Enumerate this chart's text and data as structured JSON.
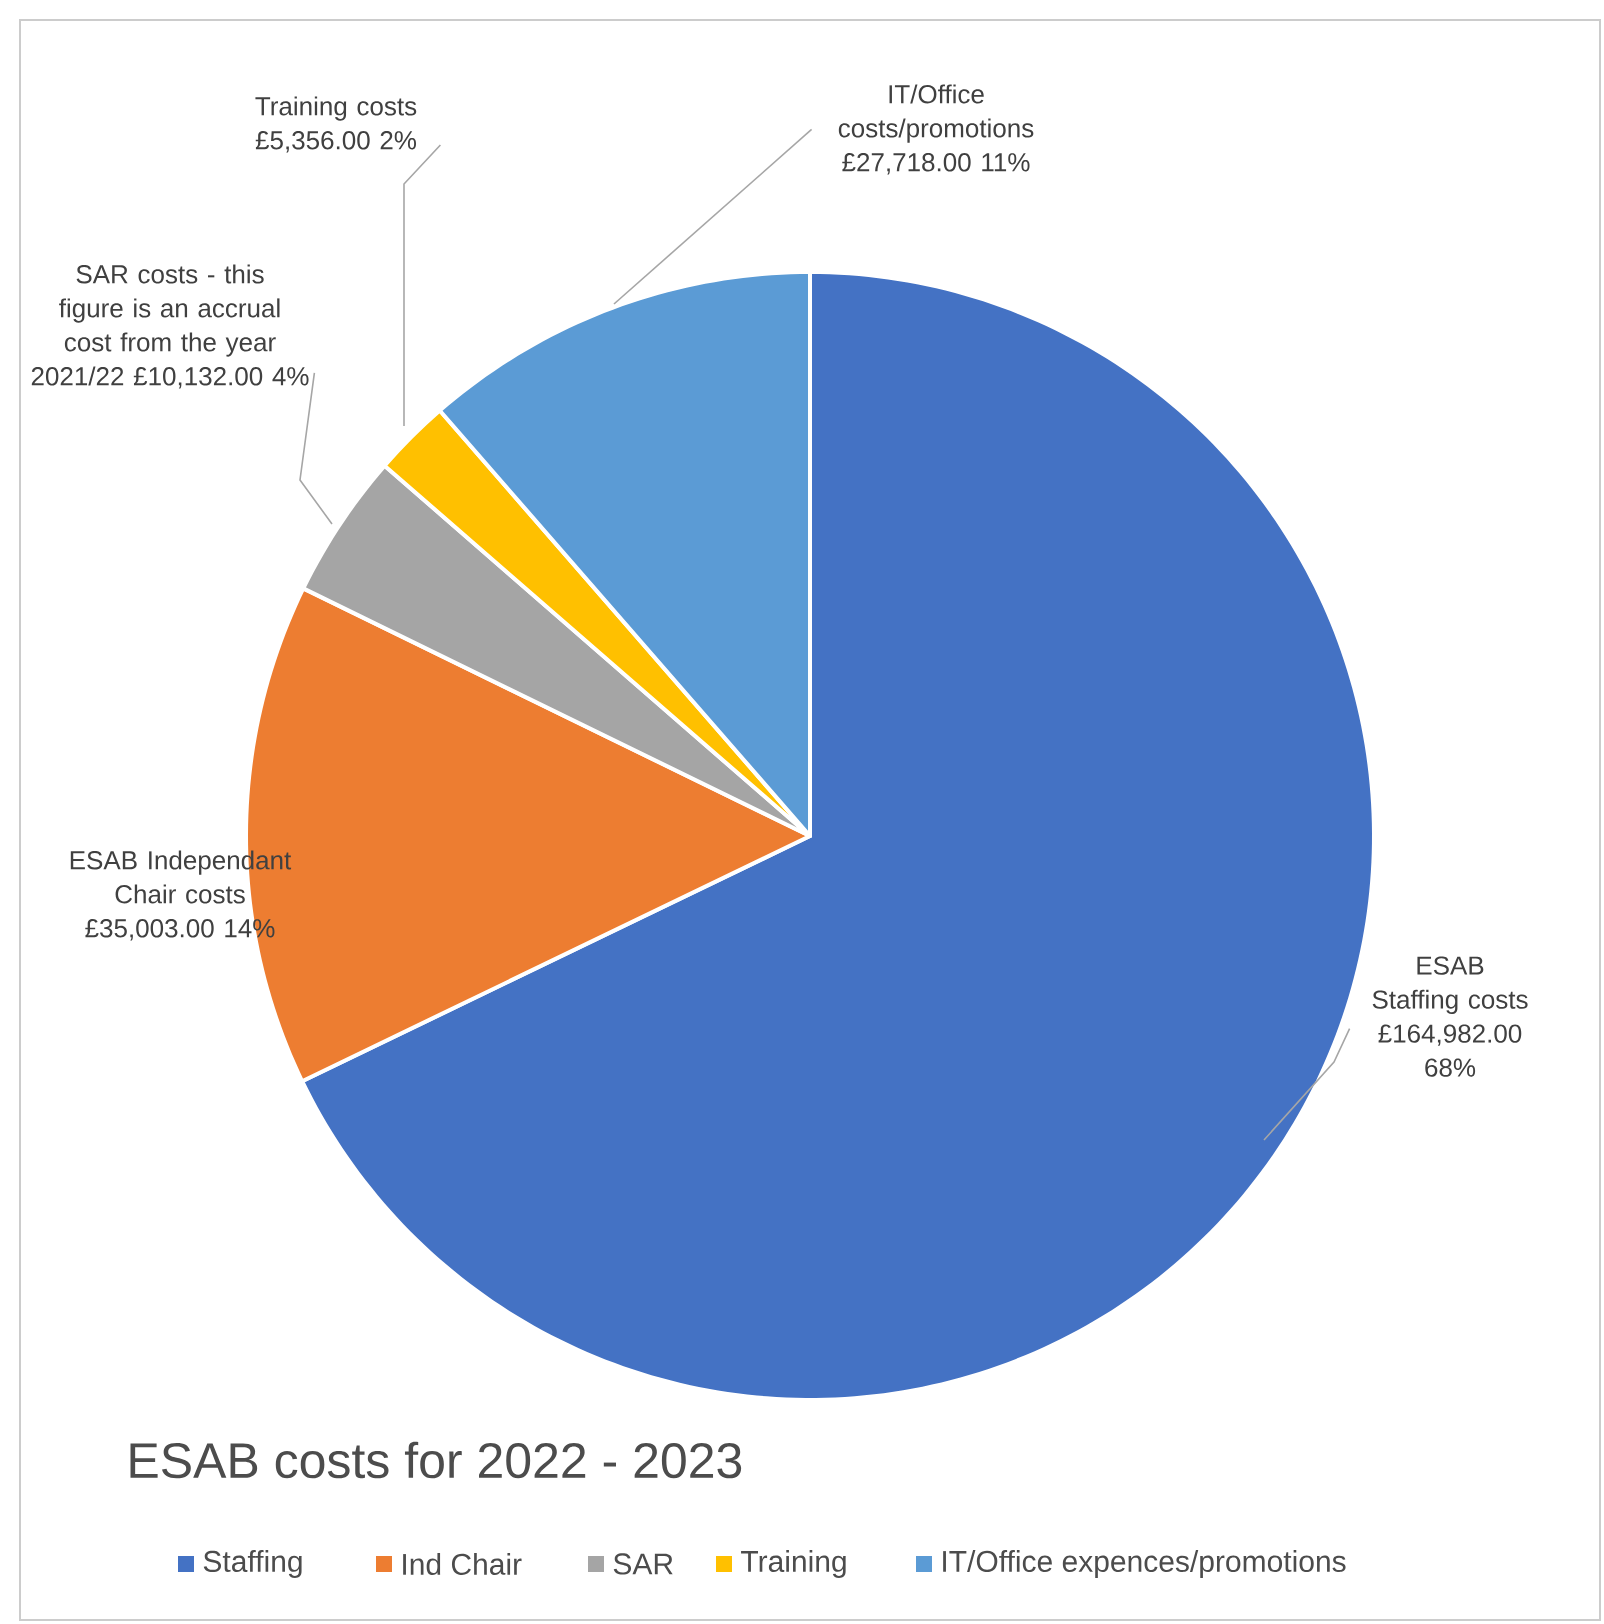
{
  "chart_data": {
    "type": "pie",
    "title": "ESAB costs for 2022 - 2023",
    "categories": [
      "Staffing",
      "Ind Chair",
      "SAR",
      "Training",
      "IT/Office expences/promotions"
    ],
    "values": [
      164982,
      35003,
      10132,
      5356,
      27718
    ],
    "colors": [
      "#4472c4",
      "#ed7d31",
      "#a5a5a5",
      "#ffc000",
      "#5b9bd5"
    ],
    "value_labels": [
      "ESAB Staffing costs £164,982.00 68%",
      "ESAB Independant Chair costs £35,003.00 14%",
      "SAR costs - this figure is an accrual cost from the year 2021/22 £10,132.00 4%",
      "Training costs £5,356.00 2%",
      "IT/Office costs/promotions £27,718.00 11%"
    ],
    "legend": "bottom"
  }
}
